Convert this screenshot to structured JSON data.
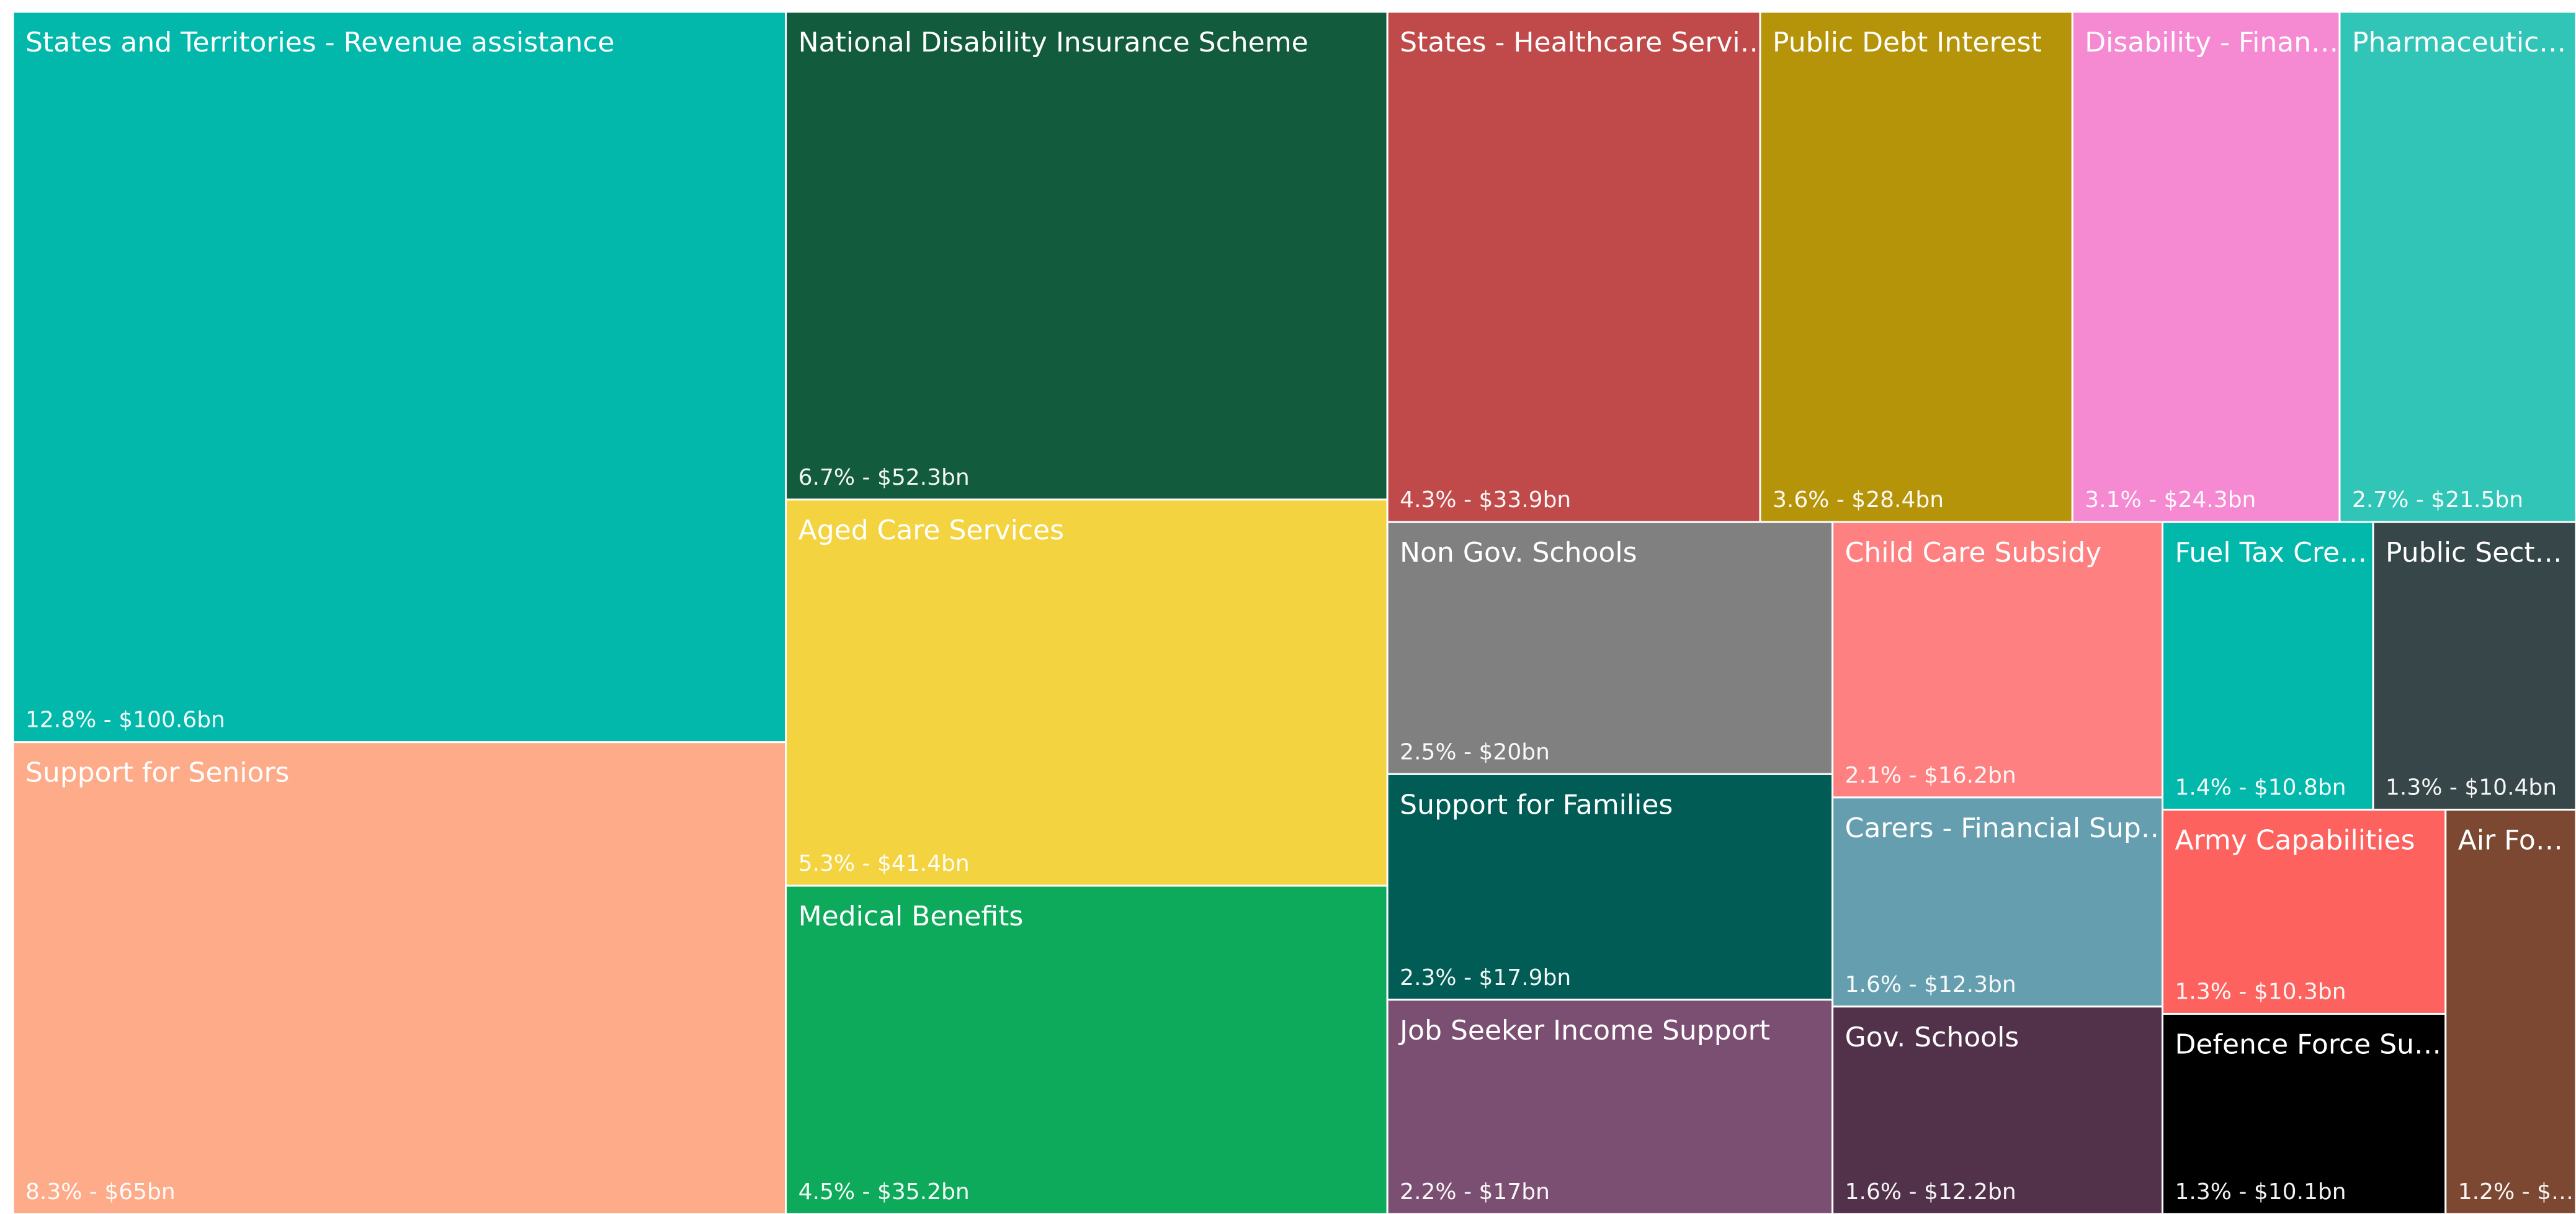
{
  "chart_data": {
    "type": "treemap",
    "categories": [
      "States and Territories - Revenue assistance",
      "Support for Seniors",
      "National Disability Insurance Scheme",
      "Aged Care Services",
      "Medical Benefits",
      "States - Healthcare Servi…",
      "Public Debt Interest",
      "Disability - Finan…",
      "Pharmaceutic…",
      "Non Gov. Schools",
      "Support for Families",
      "Job Seeker Income Support",
      "Child Care Subsidy",
      "Carers - Financial Sup…",
      "Gov. Schools",
      "Fuel Tax Cre…",
      "Public Sect…",
      "Army Capabilities",
      "Defence Force Su…",
      "Air Fo…"
    ],
    "values": [
      100.6,
      65,
      52.3,
      41.4,
      35.2,
      33.9,
      28.4,
      24.3,
      21.5,
      20,
      17.9,
      17,
      16.2,
      12.3,
      12.2,
      10.8,
      10.4,
      10.3,
      10.1,
      9.4
    ],
    "value_labels": [
      "12.8% - $100.6bn",
      "8.3% - $65bn",
      "6.7% - $52.3bn",
      "5.3% - $41.4bn",
      "4.5% - $35.2bn",
      "4.3% - $33.9bn",
      "3.6% - $28.4bn",
      "3.1% - $24.3bn",
      "2.7% - $21.5bn",
      "2.5% - $20bn",
      "2.3% - $17.9bn",
      "2.2% - $17bn",
      "2.1% - $16.2bn",
      "1.6% - $12.3bn",
      "1.6% - $12.2bn",
      "1.4% - $10.8bn",
      "1.3% - $10.4bn",
      "1.3% - $10.3bn",
      "1.3% - $10.1bn",
      "1.2% - $…"
    ],
    "colors": [
      "#01B8AA",
      "#FDAB89",
      "#135B3D",
      "#F3D33F",
      "#0DAA5B",
      "#C04A4A",
      "#B69409",
      "#F589D2",
      "#30C5B6",
      "#808080",
      "#005C55",
      "#7B4F72",
      "#FF8080",
      "#659FAF",
      "#52324A",
      "#01B8AA",
      "#374649",
      "#FD625E",
      "#000000",
      "#7C4831"
    ]
  }
}
